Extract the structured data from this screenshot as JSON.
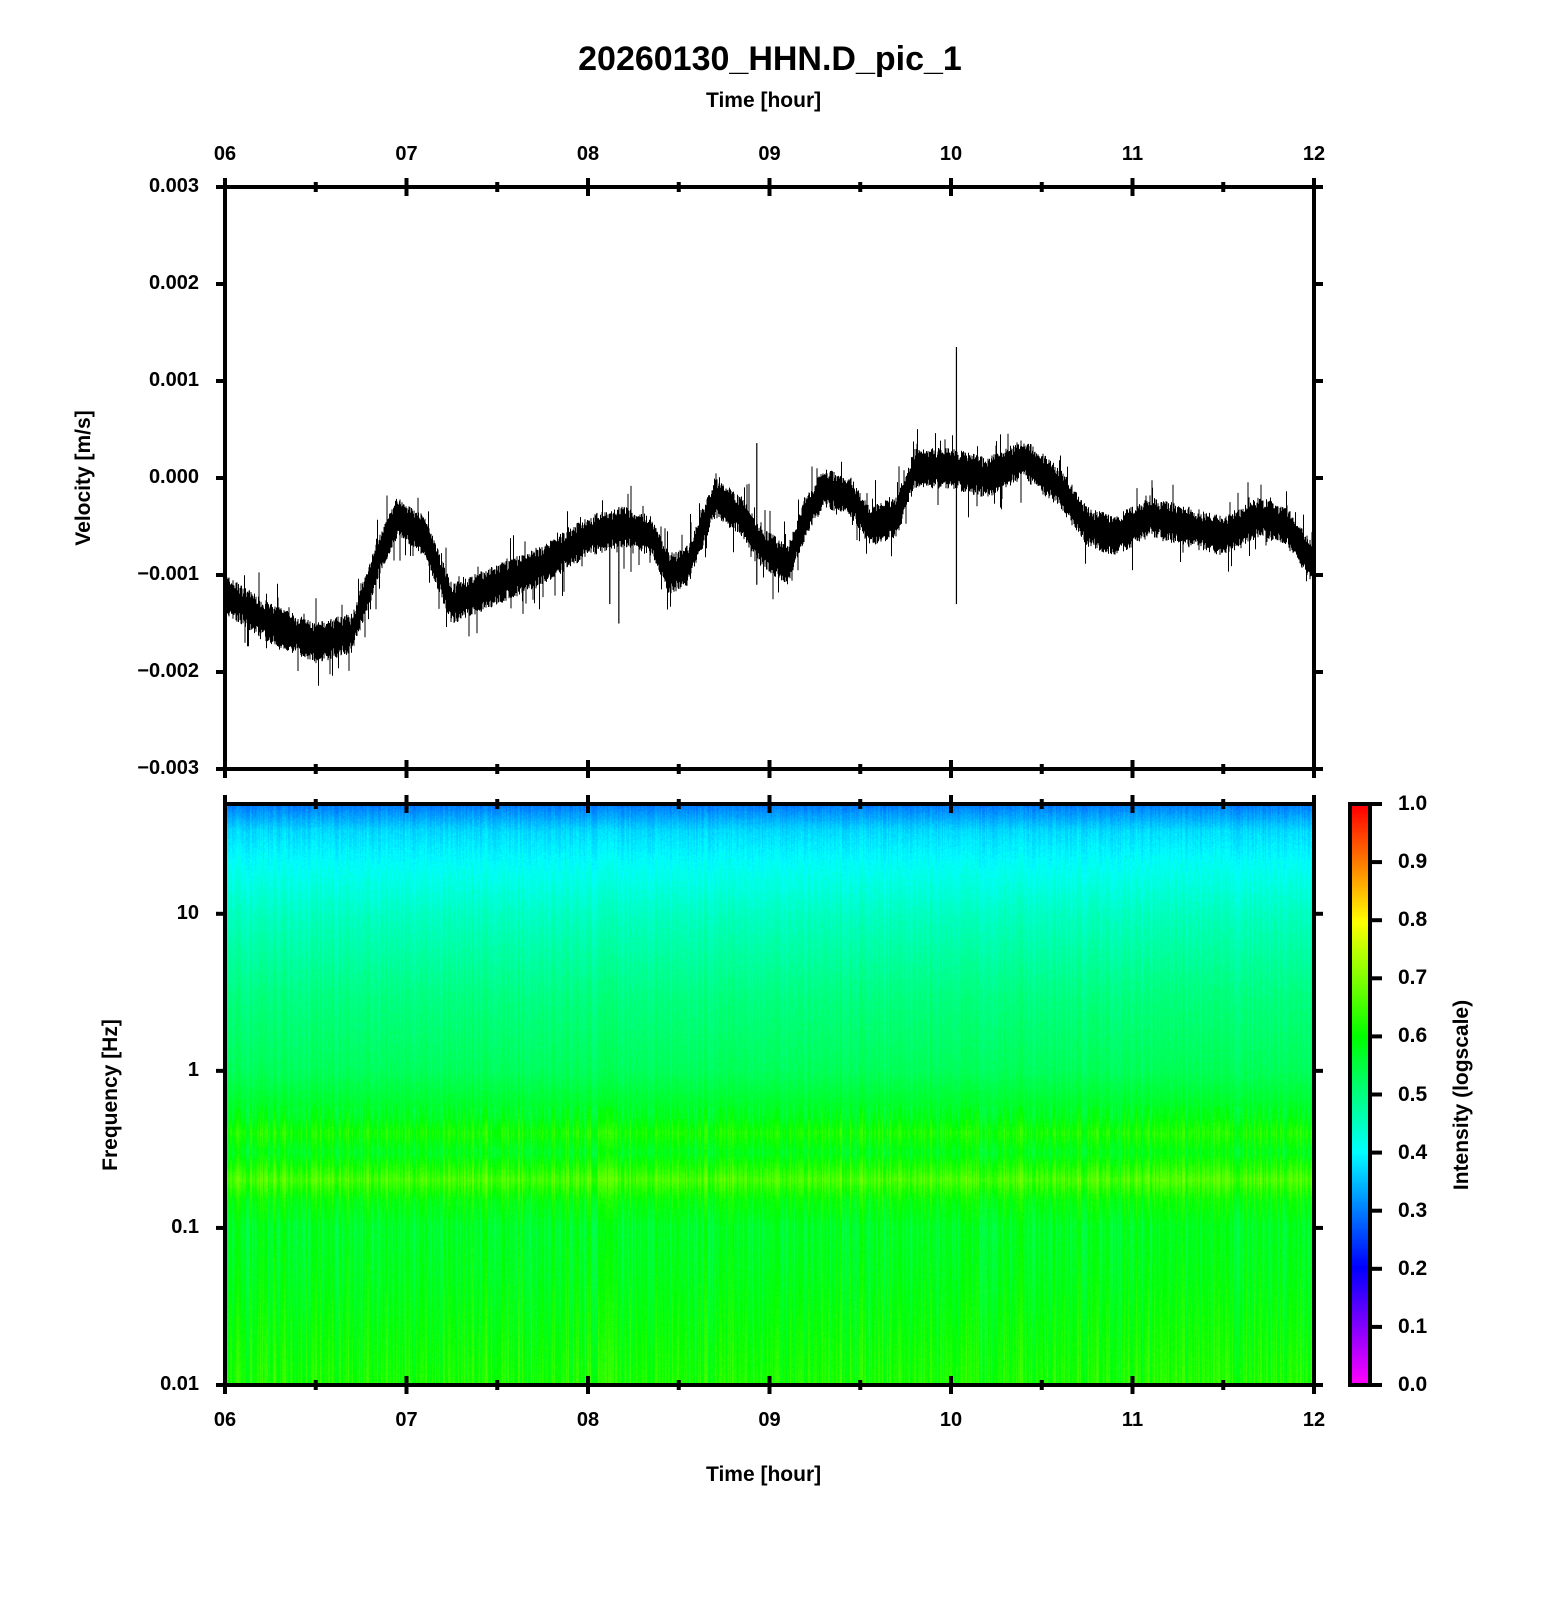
{
  "chart_data": [
    {
      "type": "line",
      "title": "20260130_HHN.D_pic_1",
      "top_xlabel": "Time [hour]",
      "ylabel": "Velocity [m/s]",
      "xlim": [
        6,
        12
      ],
      "ylim": [
        -0.003,
        0.003
      ],
      "x_ticks": [
        "06",
        "07",
        "08",
        "09",
        "10",
        "11",
        "12"
      ],
      "y_ticks": [
        "0.003",
        "0.002",
        "0.001",
        "0.000",
        "−0.001",
        "−0.002",
        "−0.003"
      ],
      "y_tick_values": [
        0.003,
        0.002,
        0.001,
        0,
        -0.001,
        -0.002,
        -0.003
      ],
      "line_color": "#000000",
      "noise_amplitude": 0.00015,
      "trend": [
        [
          6.0,
          -0.0012
        ],
        [
          6.25,
          -0.0015
        ],
        [
          6.5,
          -0.0017
        ],
        [
          6.7,
          -0.0016
        ],
        [
          6.85,
          -0.0008
        ],
        [
          6.95,
          -0.0004
        ],
        [
          7.1,
          -0.0006
        ],
        [
          7.25,
          -0.0013
        ],
        [
          7.5,
          -0.0011
        ],
        [
          7.75,
          -0.0009
        ],
        [
          8.0,
          -0.0006
        ],
        [
          8.2,
          -0.0005
        ],
        [
          8.35,
          -0.0006
        ],
        [
          8.45,
          -0.001
        ],
        [
          8.55,
          -0.0009
        ],
        [
          8.7,
          -0.0002
        ],
        [
          8.85,
          -0.0004
        ],
        [
          8.95,
          -0.0007
        ],
        [
          9.1,
          -0.0009
        ],
        [
          9.2,
          -0.0004
        ],
        [
          9.3,
          -0.0001
        ],
        [
          9.45,
          -0.0002
        ],
        [
          9.55,
          -0.0005
        ],
        [
          9.7,
          -0.0004
        ],
        [
          9.8,
          0.0001
        ],
        [
          10.0,
          0.0001
        ],
        [
          10.2,
          0.0
        ],
        [
          10.4,
          0.0002
        ],
        [
          10.6,
          -0.0001
        ],
        [
          10.75,
          -0.0005
        ],
        [
          10.9,
          -0.0006
        ],
        [
          11.1,
          -0.0004
        ],
        [
          11.3,
          -0.0005
        ],
        [
          11.5,
          -0.0006
        ],
        [
          11.7,
          -0.0004
        ],
        [
          11.85,
          -0.0005
        ],
        [
          12.0,
          -0.0009
        ]
      ],
      "spikes": [
        [
          10.03,
          0.00135,
          -0.0013
        ],
        [
          8.93,
          0.00036,
          -0.0011
        ],
        [
          8.17,
          -0.0003,
          -0.0015
        ],
        [
          8.12,
          -0.0006,
          -0.0013
        ]
      ]
    },
    {
      "type": "heatmap",
      "xlabel": "Time [hour]",
      "ylabel": "Frequency [Hz]",
      "xlim": [
        6,
        12
      ],
      "ylim": [
        0.01,
        50
      ],
      "yscale": "log",
      "x_ticks": [
        "06",
        "07",
        "08",
        "09",
        "10",
        "11",
        "12"
      ],
      "y_ticks": [
        "10",
        "1",
        "0.1",
        "0.01"
      ],
      "y_tick_values": [
        10,
        1,
        0.1,
        0.01
      ],
      "intensity_profile": [
        [
          50,
          0.3
        ],
        [
          35,
          0.37
        ],
        [
          20,
          0.41
        ],
        [
          10,
          0.45
        ],
        [
          3,
          0.5
        ],
        [
          1,
          0.53
        ],
        [
          0.5,
          0.58
        ],
        [
          0.4,
          0.62
        ],
        [
          0.3,
          0.58
        ],
        [
          0.2,
          0.66
        ],
        [
          0.15,
          0.6
        ],
        [
          0.1,
          0.57
        ],
        [
          0.05,
          0.58
        ],
        [
          0.01,
          0.62
        ]
      ],
      "colorbar": {
        "label": "Intensity (logscale)",
        "range": [
          0,
          1
        ],
        "ticks": [
          "1.0",
          "0.9",
          "0.8",
          "0.7",
          "0.6",
          "0.5",
          "0.4",
          "0.3",
          "0.2",
          "0.1",
          "0.0"
        ],
        "tick_values": [
          1,
          0.9,
          0.8,
          0.7,
          0.6,
          0.5,
          0.4,
          0.3,
          0.2,
          0.1,
          0
        ],
        "colormap": [
          [
            0,
            "#ff00ff"
          ],
          [
            0.2,
            "#0000ff"
          ],
          [
            0.4,
            "#00ffff"
          ],
          [
            0.6,
            "#00ff00"
          ],
          [
            0.8,
            "#ffff00"
          ],
          [
            1,
            "#ff0000"
          ]
        ]
      }
    }
  ]
}
